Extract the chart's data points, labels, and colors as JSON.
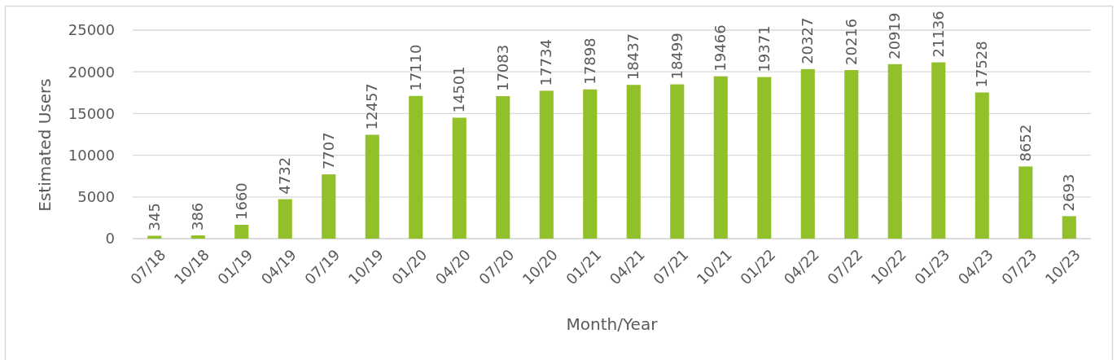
{
  "chart_data": {
    "type": "bar",
    "xlabel": "Month/Year",
    "ylabel": "Estimated Users",
    "categories": [
      "07/18",
      "10/18",
      "01/19",
      "04/19",
      "07/19",
      "10/19",
      "01/20",
      "04/20",
      "07/20",
      "10/20",
      "01/21",
      "04/21",
      "07/21",
      "10/21",
      "01/22",
      "04/22",
      "07/22",
      "10/22",
      "01/23",
      "04/23",
      "07/23",
      "10/23"
    ],
    "values": [
      345,
      386,
      1660,
      4732,
      7707,
      12457,
      17110,
      14501,
      17083,
      17734,
      17898,
      18437,
      18499,
      19466,
      19371,
      20327,
      20216,
      20919,
      21136,
      17528,
      8652,
      2693
    ],
    "color": "#92c02a",
    "ylim": [
      0,
      25000
    ],
    "yticks": [
      0,
      5000,
      10000,
      15000,
      20000,
      25000
    ],
    "grid": "y",
    "data_labels": true
  }
}
